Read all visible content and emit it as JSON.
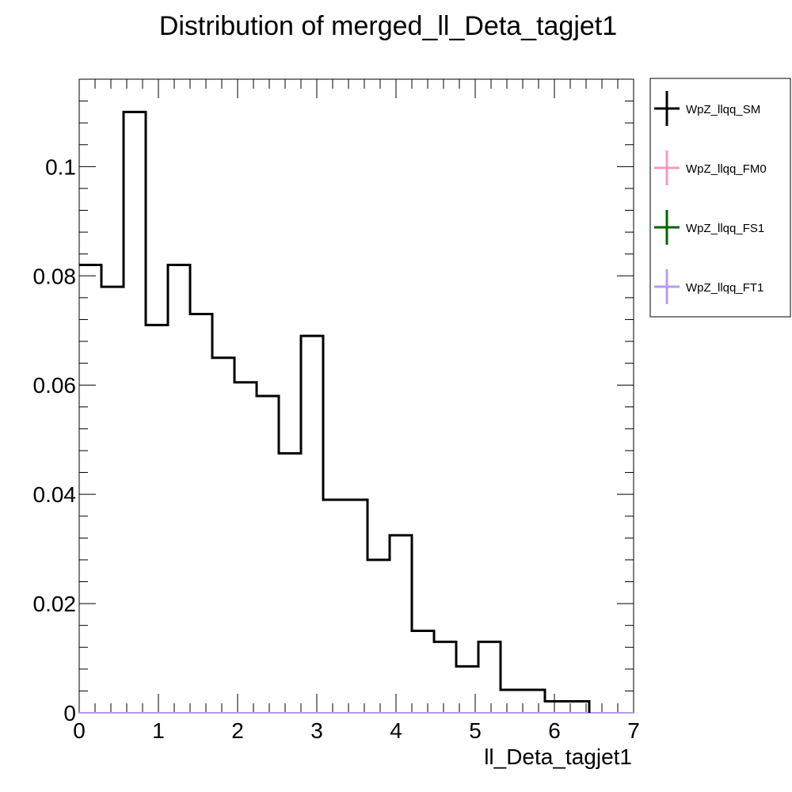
{
  "chart_data": {
    "type": "histogram",
    "title": "Distribution of merged_ll_Deta_tagjet1",
    "xlabel": "ll_Deta_tagjet1",
    "ylabel": "",
    "xlim": [
      0,
      7
    ],
    "ylim": [
      0,
      0.116
    ],
    "x_ticks": [
      "0",
      "1",
      "2",
      "3",
      "4",
      "5",
      "6",
      "7"
    ],
    "y_ticks": [
      "0",
      "0.02",
      "0.04",
      "0.06",
      "0.08",
      "0.1"
    ],
    "bin_edges": [
      0,
      0.28,
      0.56,
      0.84,
      1.12,
      1.4,
      1.68,
      1.96,
      2.24,
      2.52,
      2.8,
      3.08,
      3.36,
      3.64,
      3.92,
      4.2,
      4.48,
      4.76,
      5.04,
      5.32,
      5.6,
      5.88,
      6.16,
      6.44,
      6.72,
      7.0
    ],
    "series": [
      {
        "name": "WpZ_llqq_SM",
        "color": "#000000",
        "values": [
          0.082,
          0.078,
          0.11,
          0.071,
          0.082,
          0.073,
          0.065,
          0.0605,
          0.058,
          0.0475,
          0.069,
          0.039,
          0.039,
          0.028,
          0.0325,
          0.015,
          0.013,
          0.0085,
          0.013,
          0.0042,
          0.0042,
          0.0021,
          0.0021,
          0,
          0
        ]
      },
      {
        "name": "WpZ_llqq_FM0",
        "color": "#f49ac2",
        "values": [
          0,
          0,
          0,
          0,
          0,
          0,
          0,
          0,
          0,
          0,
          0,
          0,
          0,
          0,
          0,
          0,
          0,
          0,
          0,
          0,
          0,
          0,
          0,
          0,
          0
        ]
      },
      {
        "name": "WpZ_llqq_FS1",
        "color": "#006400",
        "values": [
          0,
          0,
          0,
          0,
          0,
          0,
          0,
          0,
          0,
          0,
          0,
          0,
          0,
          0,
          0,
          0,
          0,
          0,
          0,
          0,
          0,
          0,
          0,
          0,
          0
        ]
      },
      {
        "name": "WpZ_llqq_FT1",
        "color": "#b79cf0",
        "values": [
          0,
          0,
          0,
          0,
          0,
          0,
          0,
          0,
          0,
          0,
          0,
          0,
          0,
          0,
          0,
          0,
          0,
          0,
          0,
          0,
          0,
          0,
          0,
          0,
          0
        ]
      }
    ],
    "legend_position": "right"
  }
}
